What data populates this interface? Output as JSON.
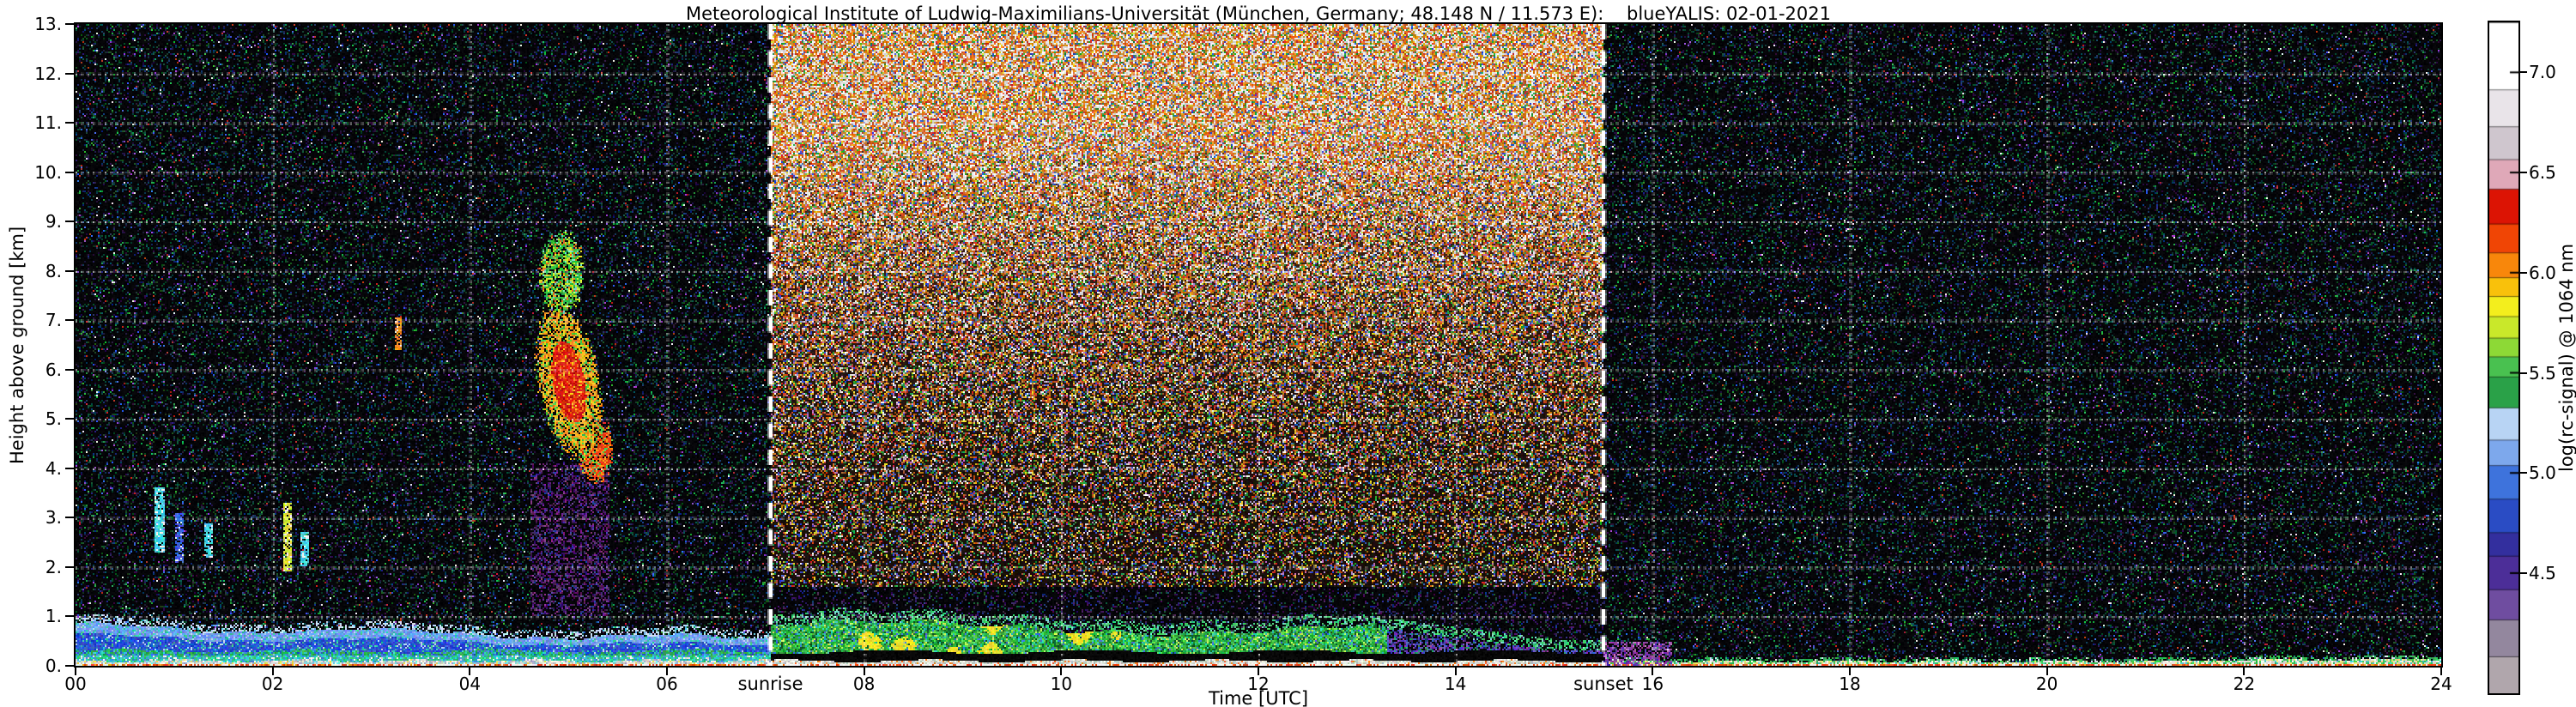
{
  "figure": {
    "title": "Meteorological Institute of Ludwig-Maximilians-Universität (München, Germany; 48.148 N / 11.573 E):    blueYALIS: 02-01-2021",
    "xlabel": "Time [UTC]",
    "ylabel": "Height above ground [km]",
    "sunrise_label": "sunrise",
    "sunset_label": "sunset"
  },
  "chart_data": {
    "type": "heatmap",
    "title": "Meteorological Institute of Ludwig-Maximilians-Universität (München, Germany; 48.148 N / 11.573 E):    blueYALIS: 02-01-2021",
    "instrument": "blueYALIS",
    "date": "02-01-2021",
    "xlabel": "Time [UTC]",
    "ylabel": "Height above ground [km]",
    "x_range_hours_utc": [
      0,
      24
    ],
    "y_range_km": [
      0,
      13
    ],
    "x_ticks": [
      "00",
      "02",
      "04",
      "06",
      "08",
      "10",
      "12",
      "14",
      "16",
      "18",
      "20",
      "22",
      "24"
    ],
    "y_ticks": [
      "0.",
      "1.",
      "2.",
      "3.",
      "4.",
      "5.",
      "6.",
      "7.",
      "8.",
      "9.",
      "10.",
      "11.",
      "12.",
      "13."
    ],
    "grid": "dotted-white, horizontal every 1 km, vertical every 2 h",
    "sunrise_utc": 7.05,
    "sunset_utc": 15.5,
    "colorbar": {
      "label": "log(rc-signal) @ 1064 nm",
      "vmin": 3.9,
      "vmax": 7.25,
      "ticks": [
        {
          "label": "4.5",
          "value": 4.5
        },
        {
          "label": "5.0",
          "value": 5.0
        },
        {
          "label": "5.5",
          "value": 5.5
        },
        {
          "label": "6.0",
          "value": 6.0
        },
        {
          "label": "6.5",
          "value": 6.5
        },
        {
          "label": "7.0",
          "value": 7.0
        }
      ],
      "bands": [
        [
          0.0,
          0.055,
          "#b0a6ac"
        ],
        [
          0.055,
          0.11,
          "#93879e"
        ],
        [
          0.11,
          0.155,
          "#6f4da0"
        ],
        [
          0.155,
          0.205,
          "#4c2e98"
        ],
        [
          0.205,
          0.24,
          "#332f9e"
        ],
        [
          0.24,
          0.29,
          "#2a4cc4"
        ],
        [
          0.29,
          0.34,
          "#3e73dc"
        ],
        [
          0.34,
          0.378,
          "#7da8ec"
        ],
        [
          0.378,
          0.426,
          "#b8d4f4"
        ],
        [
          0.426,
          0.472,
          "#2aa148"
        ],
        [
          0.472,
          0.502,
          "#49c150"
        ],
        [
          0.502,
          0.53,
          "#8dd936"
        ],
        [
          0.53,
          0.562,
          "#c9e82a"
        ],
        [
          0.562,
          0.592,
          "#f3ee1d"
        ],
        [
          0.592,
          0.62,
          "#f9c10b"
        ],
        [
          0.62,
          0.657,
          "#f8870b"
        ],
        [
          0.657,
          0.7,
          "#f04505"
        ],
        [
          0.7,
          0.752,
          "#dc1404"
        ],
        [
          0.752,
          0.796,
          "#dfa8b8"
        ],
        [
          0.796,
          0.845,
          "#cfc6ce"
        ],
        [
          0.845,
          0.9,
          "#e9e4e9"
        ],
        [
          0.9,
          1.0,
          "#ffffff"
        ]
      ]
    },
    "features": {
      "noise_seed": 987654321,
      "daytime_noise_region": {
        "time_utc": [
          7.05,
          15.5
        ],
        "height_km": [
          1.6,
          13
        ],
        "character": "bright orange-brown/white solar background noise increasing with height"
      },
      "nocturnal_layer": {
        "time_utc": [
          0,
          7.05
        ],
        "surface_line_top_km": 0.035,
        "white_band_top_km": 0.1,
        "green_band_top_km": 0.3,
        "blue_top_km_at_00": 0.8,
        "blue_descent_km_per_h": 0.038
      },
      "daytime_layer": {
        "time_utc": [
          7.05,
          15.5
        ],
        "top_km_mean": 0.78,
        "black_line_km": [
          0.1,
          0.28
        ],
        "yellow_patches_utc": [
          7.8,
          10.9
        ],
        "green_fade_after_utc": 13.2
      },
      "evening_layer": {
        "time_utc": [
          15.5,
          24
        ],
        "top_km": 0.09
      },
      "post_sunset_purple_patch": {
        "time_utc": [
          15.5,
          16.2
        ],
        "height_km": [
          0,
          0.5
        ]
      },
      "cloud": {
        "time_utc": [
          4.55,
          5.5
        ],
        "base_km": 4.0,
        "top_km": 8.6,
        "upper_lobe": {
          "t": 4.93,
          "h": 7.95,
          "rt": 0.2,
          "rh": 0.75
        },
        "main_lobe": {
          "t": 4.98,
          "h": 5.75,
          "rt": 0.3,
          "rh": 1.5,
          "slant": 0.075
        },
        "tail_lobe": {
          "t": 5.28,
          "h": 4.35,
          "rt": 0.17,
          "rh": 0.6
        }
      },
      "attenuation_column": {
        "time_utc": [
          4.62,
          5.42
        ],
        "height_km": [
          1.0,
          4.1
        ]
      },
      "streaks": [
        {
          "t": 0.85,
          "h0": 2.3,
          "h1": 3.6,
          "w": 0.05,
          "color": "cyan"
        },
        {
          "t": 1.05,
          "h0": 2.1,
          "h1": 3.1,
          "w": 0.04,
          "color": "blue"
        },
        {
          "t": 1.35,
          "h0": 2.2,
          "h1": 2.9,
          "w": 0.04,
          "color": "cyan"
        },
        {
          "t": 2.15,
          "h0": 1.9,
          "h1": 3.3,
          "w": 0.05,
          "color": "yellow"
        },
        {
          "t": 2.32,
          "h0": 2.0,
          "h1": 2.7,
          "w": 0.04,
          "color": "cyan"
        },
        {
          "t": 3.27,
          "h0": 6.4,
          "h1": 7.05,
          "w": 0.035,
          "color": "orange"
        }
      ]
    }
  }
}
